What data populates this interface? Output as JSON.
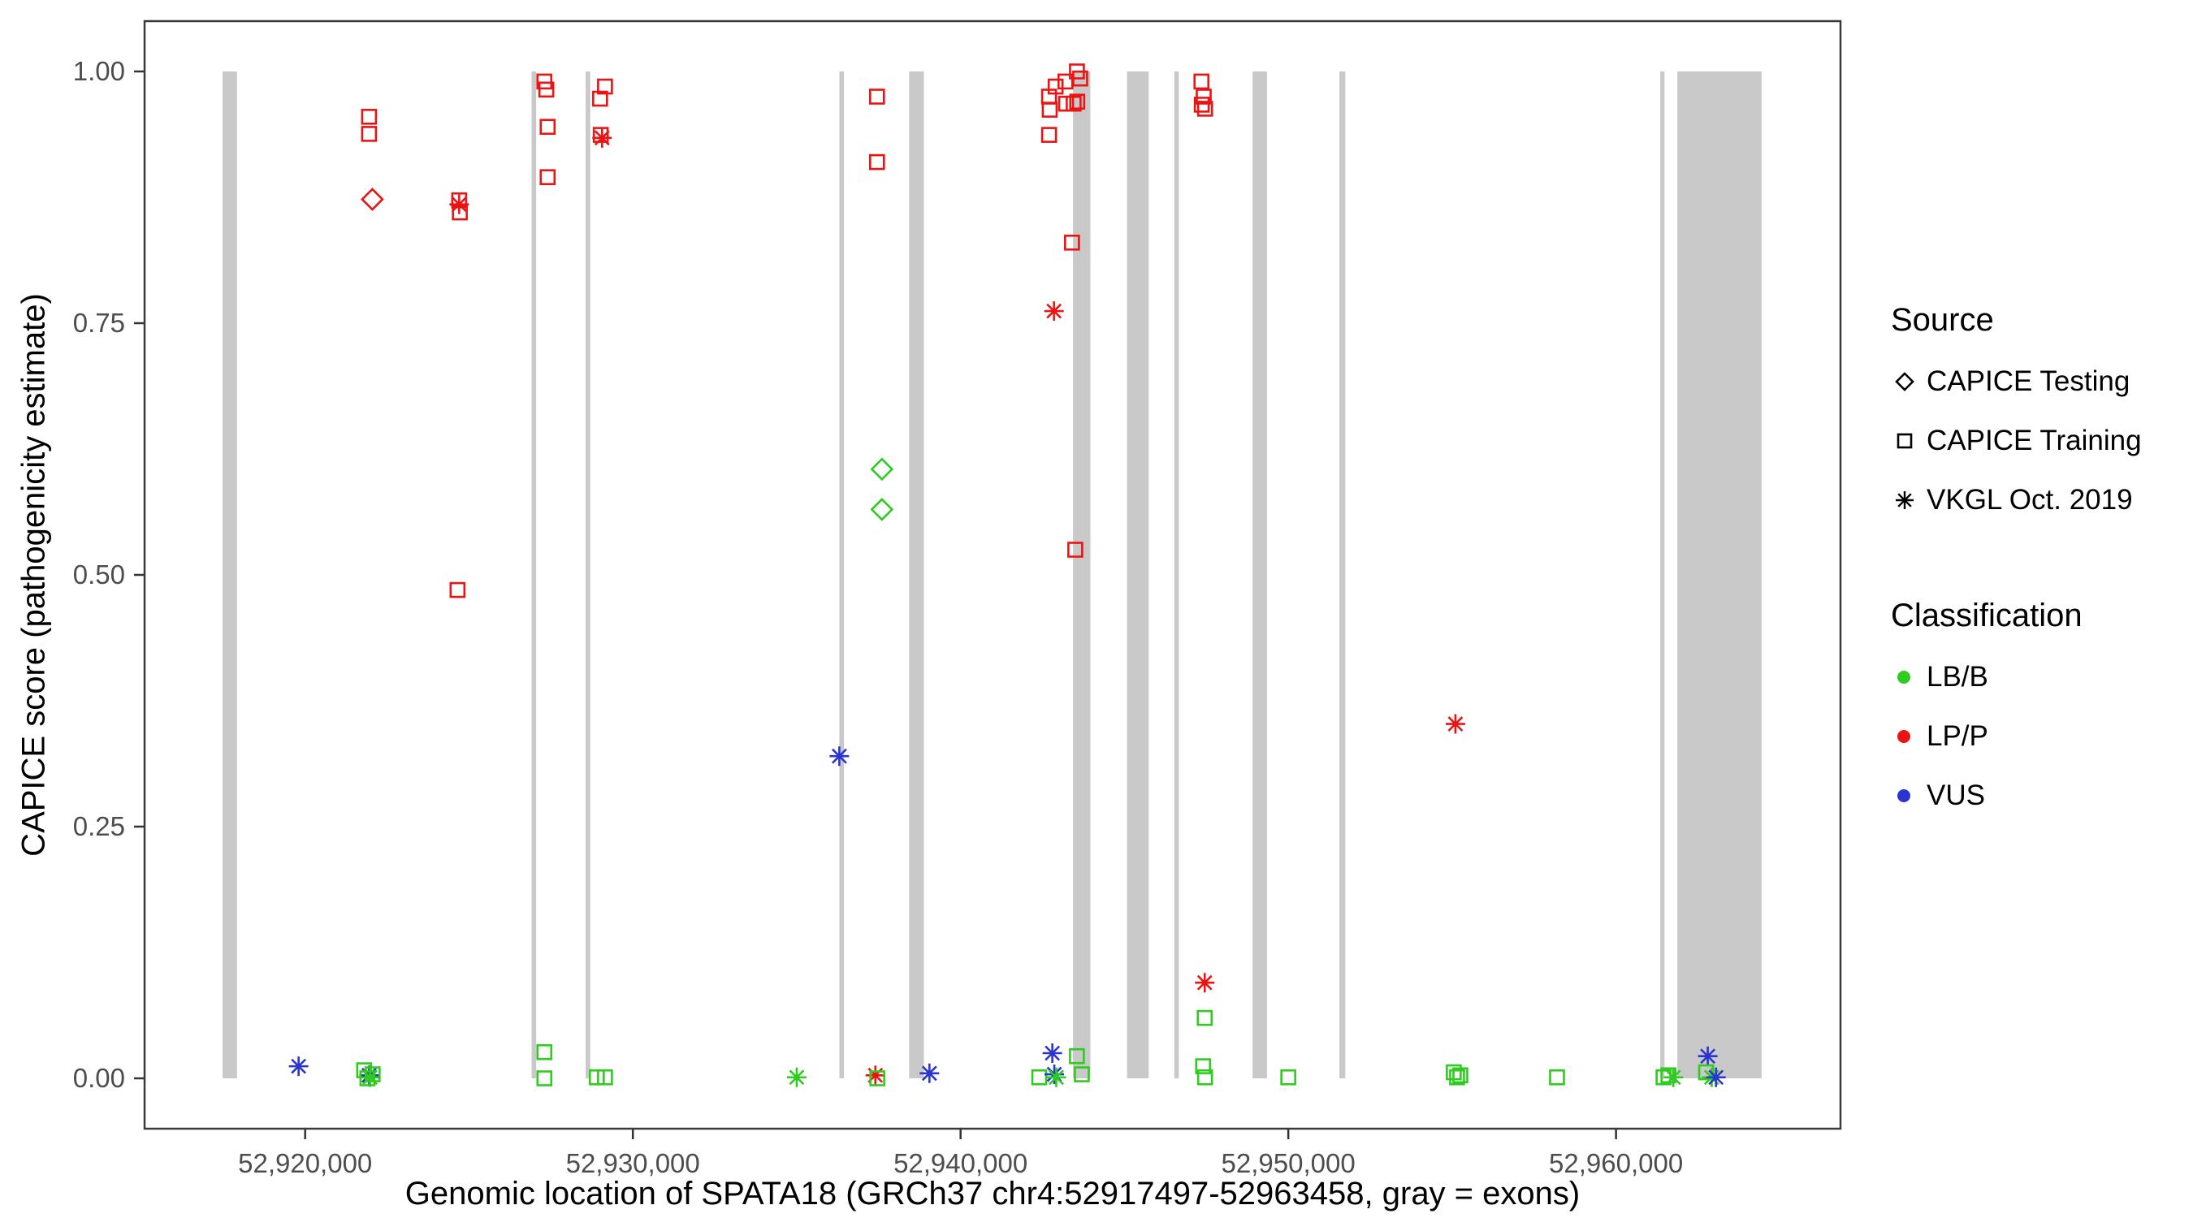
{
  "chart_data": {
    "type": "scatter",
    "title": "",
    "xlabel": "Genomic location of SPATA18 (GRCh37 chr4:52917497-52963458, gray = exons)",
    "ylabel": "CAPICE score (pathogenicity estimate)",
    "xlim": [
      52915100,
      52966850
    ],
    "ylim": [
      -0.05,
      1.05
    ],
    "grid": false,
    "x_ticks": [
      {
        "value": 52920000,
        "label": "52,920,000"
      },
      {
        "value": 52930000,
        "label": "52,930,000"
      },
      {
        "value": 52940000,
        "label": "52,940,000"
      },
      {
        "value": 52950000,
        "label": "52,950,000"
      },
      {
        "value": 52960000,
        "label": "52,960,000"
      }
    ],
    "y_ticks": [
      {
        "value": 0.0,
        "label": "0.00"
      },
      {
        "value": 0.25,
        "label": "0.25"
      },
      {
        "value": 0.5,
        "label": "0.50"
      },
      {
        "value": 0.75,
        "label": "0.75"
      },
      {
        "value": 1.0,
        "label": "1.00"
      }
    ],
    "colors": {
      "exon": "#C9C9C9",
      "panel_border": "#3A3A3A",
      "tick": "#333333",
      "tick_label": "#4D4D4D"
    },
    "shape_by_source": {
      "CAPICE Testing": "diamond",
      "CAPICE Training": "square",
      "VKGL Oct. 2019": "asterisk"
    },
    "color_by_classification": {
      "LB/B": "#2FCB1F",
      "LP/P": "#EC1313",
      "VUS": "#2A35CF"
    },
    "exons": [
      [
        52917480,
        52917920
      ],
      [
        52926910,
        52927050
      ],
      [
        52928560,
        52928700
      ],
      [
        52936300,
        52936440
      ],
      [
        52938430,
        52938880
      ],
      [
        52943430,
        52943960
      ],
      [
        52945080,
        52945740
      ],
      [
        52946520,
        52946660
      ],
      [
        52948910,
        52949350
      ],
      [
        52951560,
        52951740
      ],
      [
        52961350,
        52961480
      ],
      [
        52961870,
        52964440
      ]
    ],
    "points_format": [
      "position_bp",
      "capice_score",
      "source",
      "classification"
    ],
    "points": [
      [
        52921950,
        0.955,
        "CAPICE Training",
        "LP/P"
      ],
      [
        52921950,
        0.938,
        "CAPICE Training",
        "LP/P"
      ],
      [
        52922050,
        0.873,
        "CAPICE Testing",
        "LP/P"
      ],
      [
        52924700,
        0.872,
        "CAPICE Training",
        "LP/P"
      ],
      [
        52924700,
        0.868,
        "VKGL Oct. 2019",
        "LP/P"
      ],
      [
        52924720,
        0.86,
        "CAPICE Training",
        "LP/P"
      ],
      [
        52924650,
        0.485,
        "CAPICE Training",
        "LP/P"
      ],
      [
        52927300,
        0.99,
        "CAPICE Training",
        "LP/P"
      ],
      [
        52927360,
        0.982,
        "CAPICE Training",
        "LP/P"
      ],
      [
        52927400,
        0.945,
        "CAPICE Training",
        "LP/P"
      ],
      [
        52927400,
        0.895,
        "CAPICE Training",
        "LP/P"
      ],
      [
        52929150,
        0.985,
        "CAPICE Training",
        "LP/P"
      ],
      [
        52929000,
        0.973,
        "CAPICE Training",
        "LP/P"
      ],
      [
        52929020,
        0.937,
        "CAPICE Training",
        "LP/P"
      ],
      [
        52929060,
        0.934,
        "VKGL Oct. 2019",
        "LP/P"
      ],
      [
        52937450,
        0.975,
        "CAPICE Training",
        "LP/P"
      ],
      [
        52937450,
        0.91,
        "CAPICE Training",
        "LP/P"
      ],
      [
        52937600,
        0.605,
        "CAPICE Testing",
        "LB/B"
      ],
      [
        52937600,
        0.565,
        "CAPICE Testing",
        "LB/B"
      ],
      [
        52936300,
        0.32,
        "VKGL Oct. 2019",
        "VUS"
      ],
      [
        52942700,
        0.975,
        "CAPICE Training",
        "LP/P"
      ],
      [
        52942720,
        0.962,
        "CAPICE Training",
        "LP/P"
      ],
      [
        52942700,
        0.937,
        "CAPICE Training",
        "LP/P"
      ],
      [
        52942900,
        0.985,
        "CAPICE Training",
        "LP/P"
      ],
      [
        52943200,
        0.99,
        "CAPICE Training",
        "LP/P"
      ],
      [
        52943220,
        0.968,
        "CAPICE Training",
        "LP/P"
      ],
      [
        52943450,
        0.968,
        "CAPICE Training",
        "LP/P"
      ],
      [
        52943550,
        1.0,
        "CAPICE Training",
        "LP/P"
      ],
      [
        52943650,
        0.993,
        "CAPICE Training",
        "LP/P"
      ],
      [
        52943560,
        0.97,
        "CAPICE Training",
        "LP/P"
      ],
      [
        52943400,
        0.83,
        "CAPICE Training",
        "LP/P"
      ],
      [
        52942850,
        0.762,
        "VKGL Oct. 2019",
        "LP/P"
      ],
      [
        52943500,
        0.525,
        "CAPICE Training",
        "LP/P"
      ],
      [
        52947350,
        0.99,
        "CAPICE Training",
        "LP/P"
      ],
      [
        52947420,
        0.975,
        "CAPICE Training",
        "LP/P"
      ],
      [
        52947360,
        0.967,
        "CAPICE Training",
        "LP/P"
      ],
      [
        52947460,
        0.963,
        "CAPICE Training",
        "LP/P"
      ],
      [
        52947450,
        0.095,
        "VKGL Oct. 2019",
        "LP/P"
      ],
      [
        52947450,
        0.06,
        "CAPICE Training",
        "LB/B"
      ],
      [
        52955100,
        0.352,
        "VKGL Oct. 2019",
        "LP/P"
      ],
      [
        52919800,
        0.012,
        "VKGL Oct. 2019",
        "VUS"
      ],
      [
        52921800,
        0.008,
        "CAPICE Training",
        "LB/B"
      ],
      [
        52921950,
        0.003,
        "VKGL Oct. 2019",
        "VUS"
      ],
      [
        52921980,
        0.001,
        "VKGL Oct. 2019",
        "LB/B"
      ],
      [
        52922060,
        0.004,
        "CAPICE Training",
        "LB/B"
      ],
      [
        52921900,
        0.0,
        "CAPICE Training",
        "LB/B"
      ],
      [
        52927300,
        0.026,
        "CAPICE Training",
        "LB/B"
      ],
      [
        52927300,
        0.0,
        "CAPICE Training",
        "LB/B"
      ],
      [
        52928900,
        0.001,
        "CAPICE Training",
        "LB/B"
      ],
      [
        52929150,
        0.001,
        "CAPICE Training",
        "LB/B"
      ],
      [
        52935000,
        0.001,
        "VKGL Oct. 2019",
        "LB/B"
      ],
      [
        52937400,
        0.003,
        "VKGL Oct. 2019",
        "LP/P"
      ],
      [
        52937460,
        0.0,
        "CAPICE Training",
        "LB/B"
      ],
      [
        52939050,
        0.005,
        "VKGL Oct. 2019",
        "VUS"
      ],
      [
        52942400,
        0.001,
        "CAPICE Training",
        "LB/B"
      ],
      [
        52942800,
        0.025,
        "VKGL Oct. 2019",
        "VUS"
      ],
      [
        52942860,
        0.004,
        "VKGL Oct. 2019",
        "VUS"
      ],
      [
        52942920,
        0.001,
        "VKGL Oct. 2019",
        "LB/B"
      ],
      [
        52943550,
        0.022,
        "CAPICE Training",
        "LB/B"
      ],
      [
        52943700,
        0.004,
        "CAPICE Training",
        "LB/B"
      ],
      [
        52947400,
        0.012,
        "CAPICE Training",
        "LB/B"
      ],
      [
        52947460,
        0.001,
        "CAPICE Training",
        "LB/B"
      ],
      [
        52950000,
        0.001,
        "CAPICE Training",
        "LB/B"
      ],
      [
        52955050,
        0.006,
        "CAPICE Training",
        "LB/B"
      ],
      [
        52955150,
        0.001,
        "CAPICE Training",
        "LB/B"
      ],
      [
        52955250,
        0.003,
        "CAPICE Training",
        "LB/B"
      ],
      [
        52958200,
        0.001,
        "CAPICE Training",
        "LB/B"
      ],
      [
        52961450,
        0.001,
        "CAPICE Training",
        "LB/B"
      ],
      [
        52961600,
        0.003,
        "CAPICE Training",
        "LB/B"
      ],
      [
        52961750,
        0.001,
        "VKGL Oct. 2019",
        "LB/B"
      ],
      [
        52962800,
        0.022,
        "VKGL Oct. 2019",
        "VUS"
      ],
      [
        52962750,
        0.006,
        "CAPICE Training",
        "LB/B"
      ],
      [
        52962920,
        0.001,
        "VKGL Oct. 2019",
        "LB/B"
      ],
      [
        52963050,
        0.001,
        "VKGL Oct. 2019",
        "VUS"
      ]
    ]
  },
  "legend": {
    "source": {
      "title": "Source",
      "items": [
        {
          "label": "CAPICE Testing",
          "shape": "diamond"
        },
        {
          "label": "CAPICE Training",
          "shape": "square"
        },
        {
          "label": "VKGL Oct. 2019",
          "shape": "asterisk"
        }
      ]
    },
    "classification": {
      "title": "Classification",
      "items": [
        {
          "label": "LB/B",
          "color": "#2FCB1F"
        },
        {
          "label": "LP/P",
          "color": "#EC1313"
        },
        {
          "label": "VUS",
          "color": "#2A35CF"
        }
      ]
    }
  }
}
